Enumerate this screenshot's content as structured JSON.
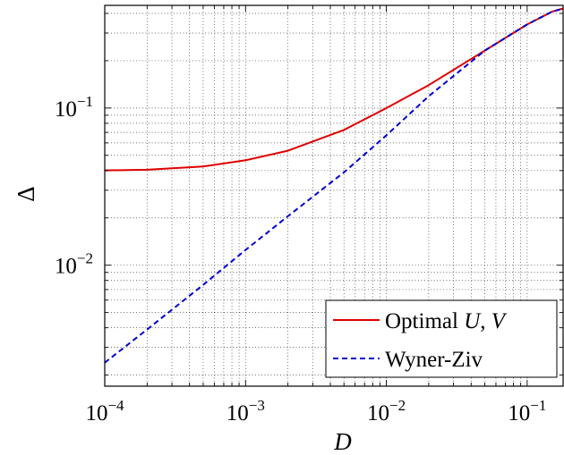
{
  "chart_data": {
    "type": "line",
    "xlabel": "D",
    "ylabel": "Δ",
    "xscale": "log",
    "yscale": "log",
    "xlim": [
      0.0001,
      0.18
    ],
    "ylim": [
      0.0017,
      0.45
    ],
    "grid": true,
    "x_ticks": [
      {
        "value": 0.0001,
        "base": "10",
        "exp": "−4"
      },
      {
        "value": 0.001,
        "base": "10",
        "exp": "−3"
      },
      {
        "value": 0.01,
        "base": "10",
        "exp": "−2"
      },
      {
        "value": 0.1,
        "base": "10",
        "exp": "−1"
      }
    ],
    "y_ticks": [
      {
        "value": 0.01,
        "base": "10",
        "exp": "−2"
      },
      {
        "value": 0.1,
        "base": "10",
        "exp": "−1"
      }
    ],
    "legend_position": "bottom-right",
    "series": [
      {
        "name": "Optimal U, V",
        "color": "#e00000",
        "style": "solid",
        "x": [
          0.0001,
          0.0002,
          0.0005,
          0.001,
          0.002,
          0.005,
          0.01,
          0.02,
          0.05,
          0.1,
          0.15,
          0.18
        ],
        "y": [
          0.0401,
          0.0405,
          0.0425,
          0.0465,
          0.0535,
          0.0725,
          0.1,
          0.14,
          0.232,
          0.34,
          0.41,
          0.43
        ]
      },
      {
        "name": "Wyner-Ziv",
        "color": "#0000d0",
        "style": "dashed",
        "x": [
          0.0001,
          0.0002,
          0.0005,
          0.001,
          0.002,
          0.005,
          0.01,
          0.02,
          0.05,
          0.1,
          0.15,
          0.18
        ],
        "y": [
          0.0024,
          0.0039,
          0.0075,
          0.0125,
          0.0205,
          0.039,
          0.067,
          0.119,
          0.232,
          0.34,
          0.41,
          0.43
        ]
      }
    ]
  },
  "legend": {
    "entries": [
      {
        "text": "Optimal ",
        "math": "U",
        "sep": ", ",
        "math2": "V"
      },
      {
        "text": "Wyner-Ziv",
        "math": "",
        "sep": "",
        "math2": ""
      }
    ]
  },
  "axes": {
    "xlabel": "D",
    "ylabel": "Δ"
  }
}
